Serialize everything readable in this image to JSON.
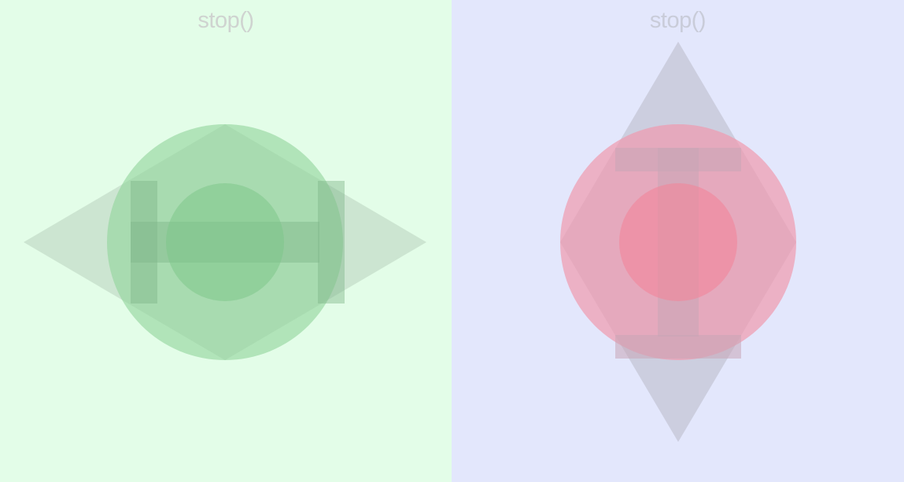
{
  "panels": [
    {
      "label": "stop()",
      "background": "#e3fde8",
      "accent": "#8fd39a",
      "orientation": "horizontal"
    },
    {
      "label": "stop()",
      "background": "#e3e7fc",
      "accent": "#f08fa0",
      "orientation": "vertical"
    }
  ],
  "icons": {
    "left": "stop-icon-horizontal",
    "right": "stop-icon-vertical"
  }
}
